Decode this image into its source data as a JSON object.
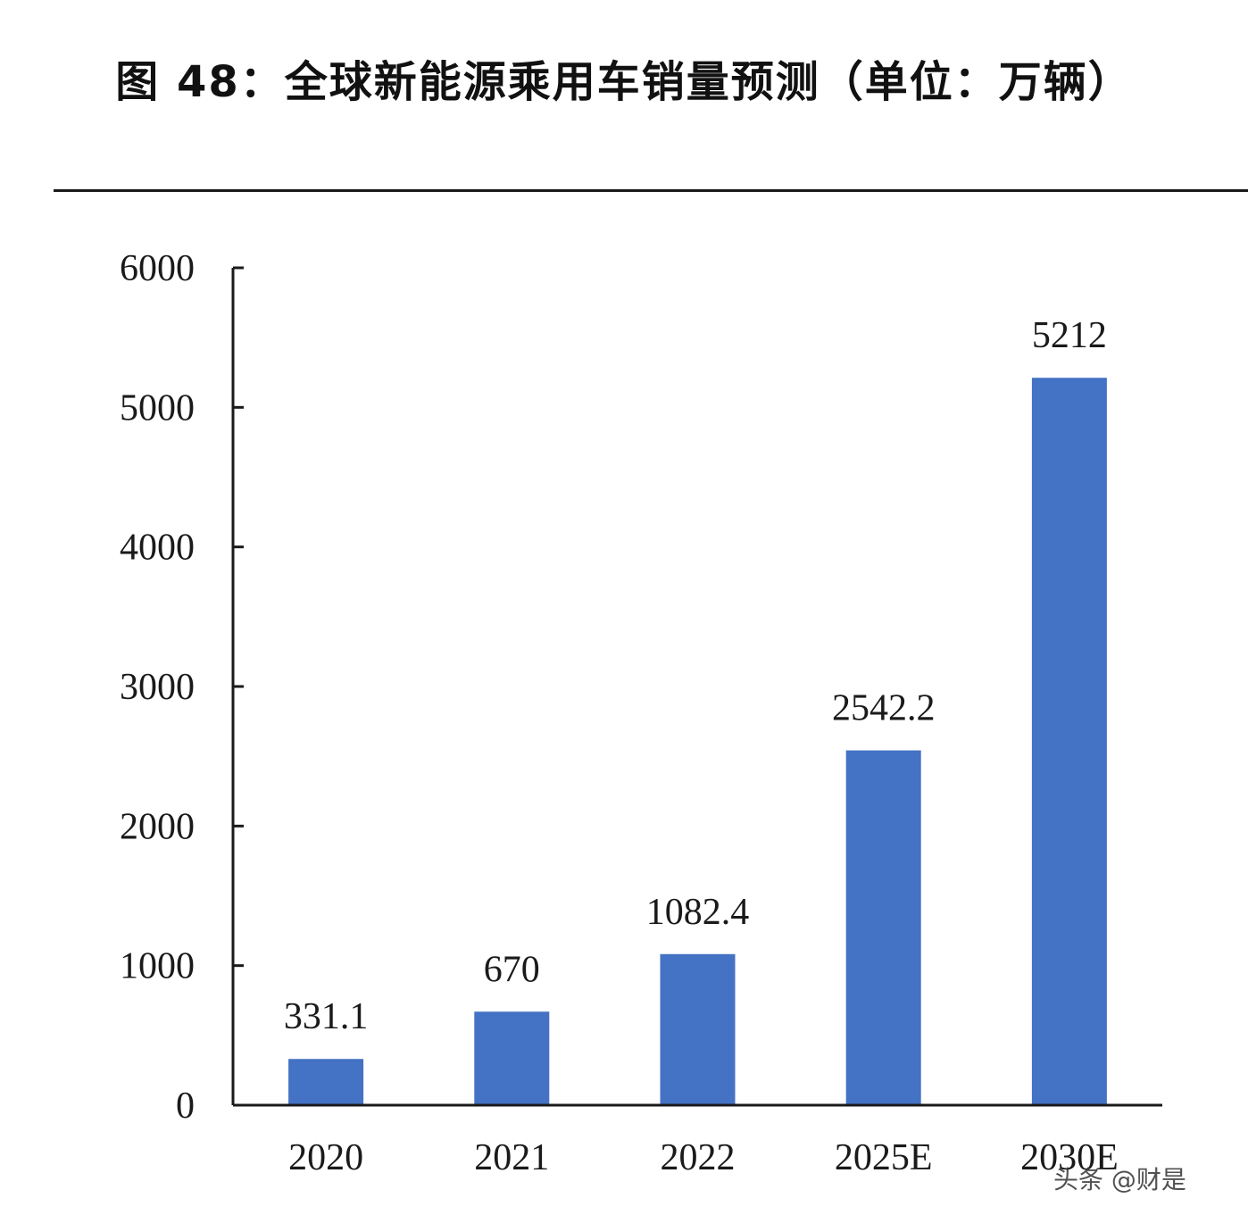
{
  "title": "图 48：全球新能源乘用车销量预测（单位：万辆）",
  "watermark": "头条 @财是",
  "colors": {
    "bar": "#4472C4",
    "axis": "#1a1a1a"
  },
  "chart_data": {
    "type": "bar",
    "categories": [
      "2020",
      "2021",
      "2022",
      "2025E",
      "2030E"
    ],
    "values": [
      331.1,
      670,
      1082.4,
      2542.2,
      5212
    ],
    "data_labels": [
      "331.1",
      "670",
      "1082.4",
      "2542.2",
      "5212"
    ],
    "y_ticks": [
      "0",
      "1000",
      "2000",
      "3000",
      "4000",
      "5000",
      "6000"
    ],
    "ylim": [
      0,
      6000
    ],
    "grid": false,
    "legend": "none"
  }
}
